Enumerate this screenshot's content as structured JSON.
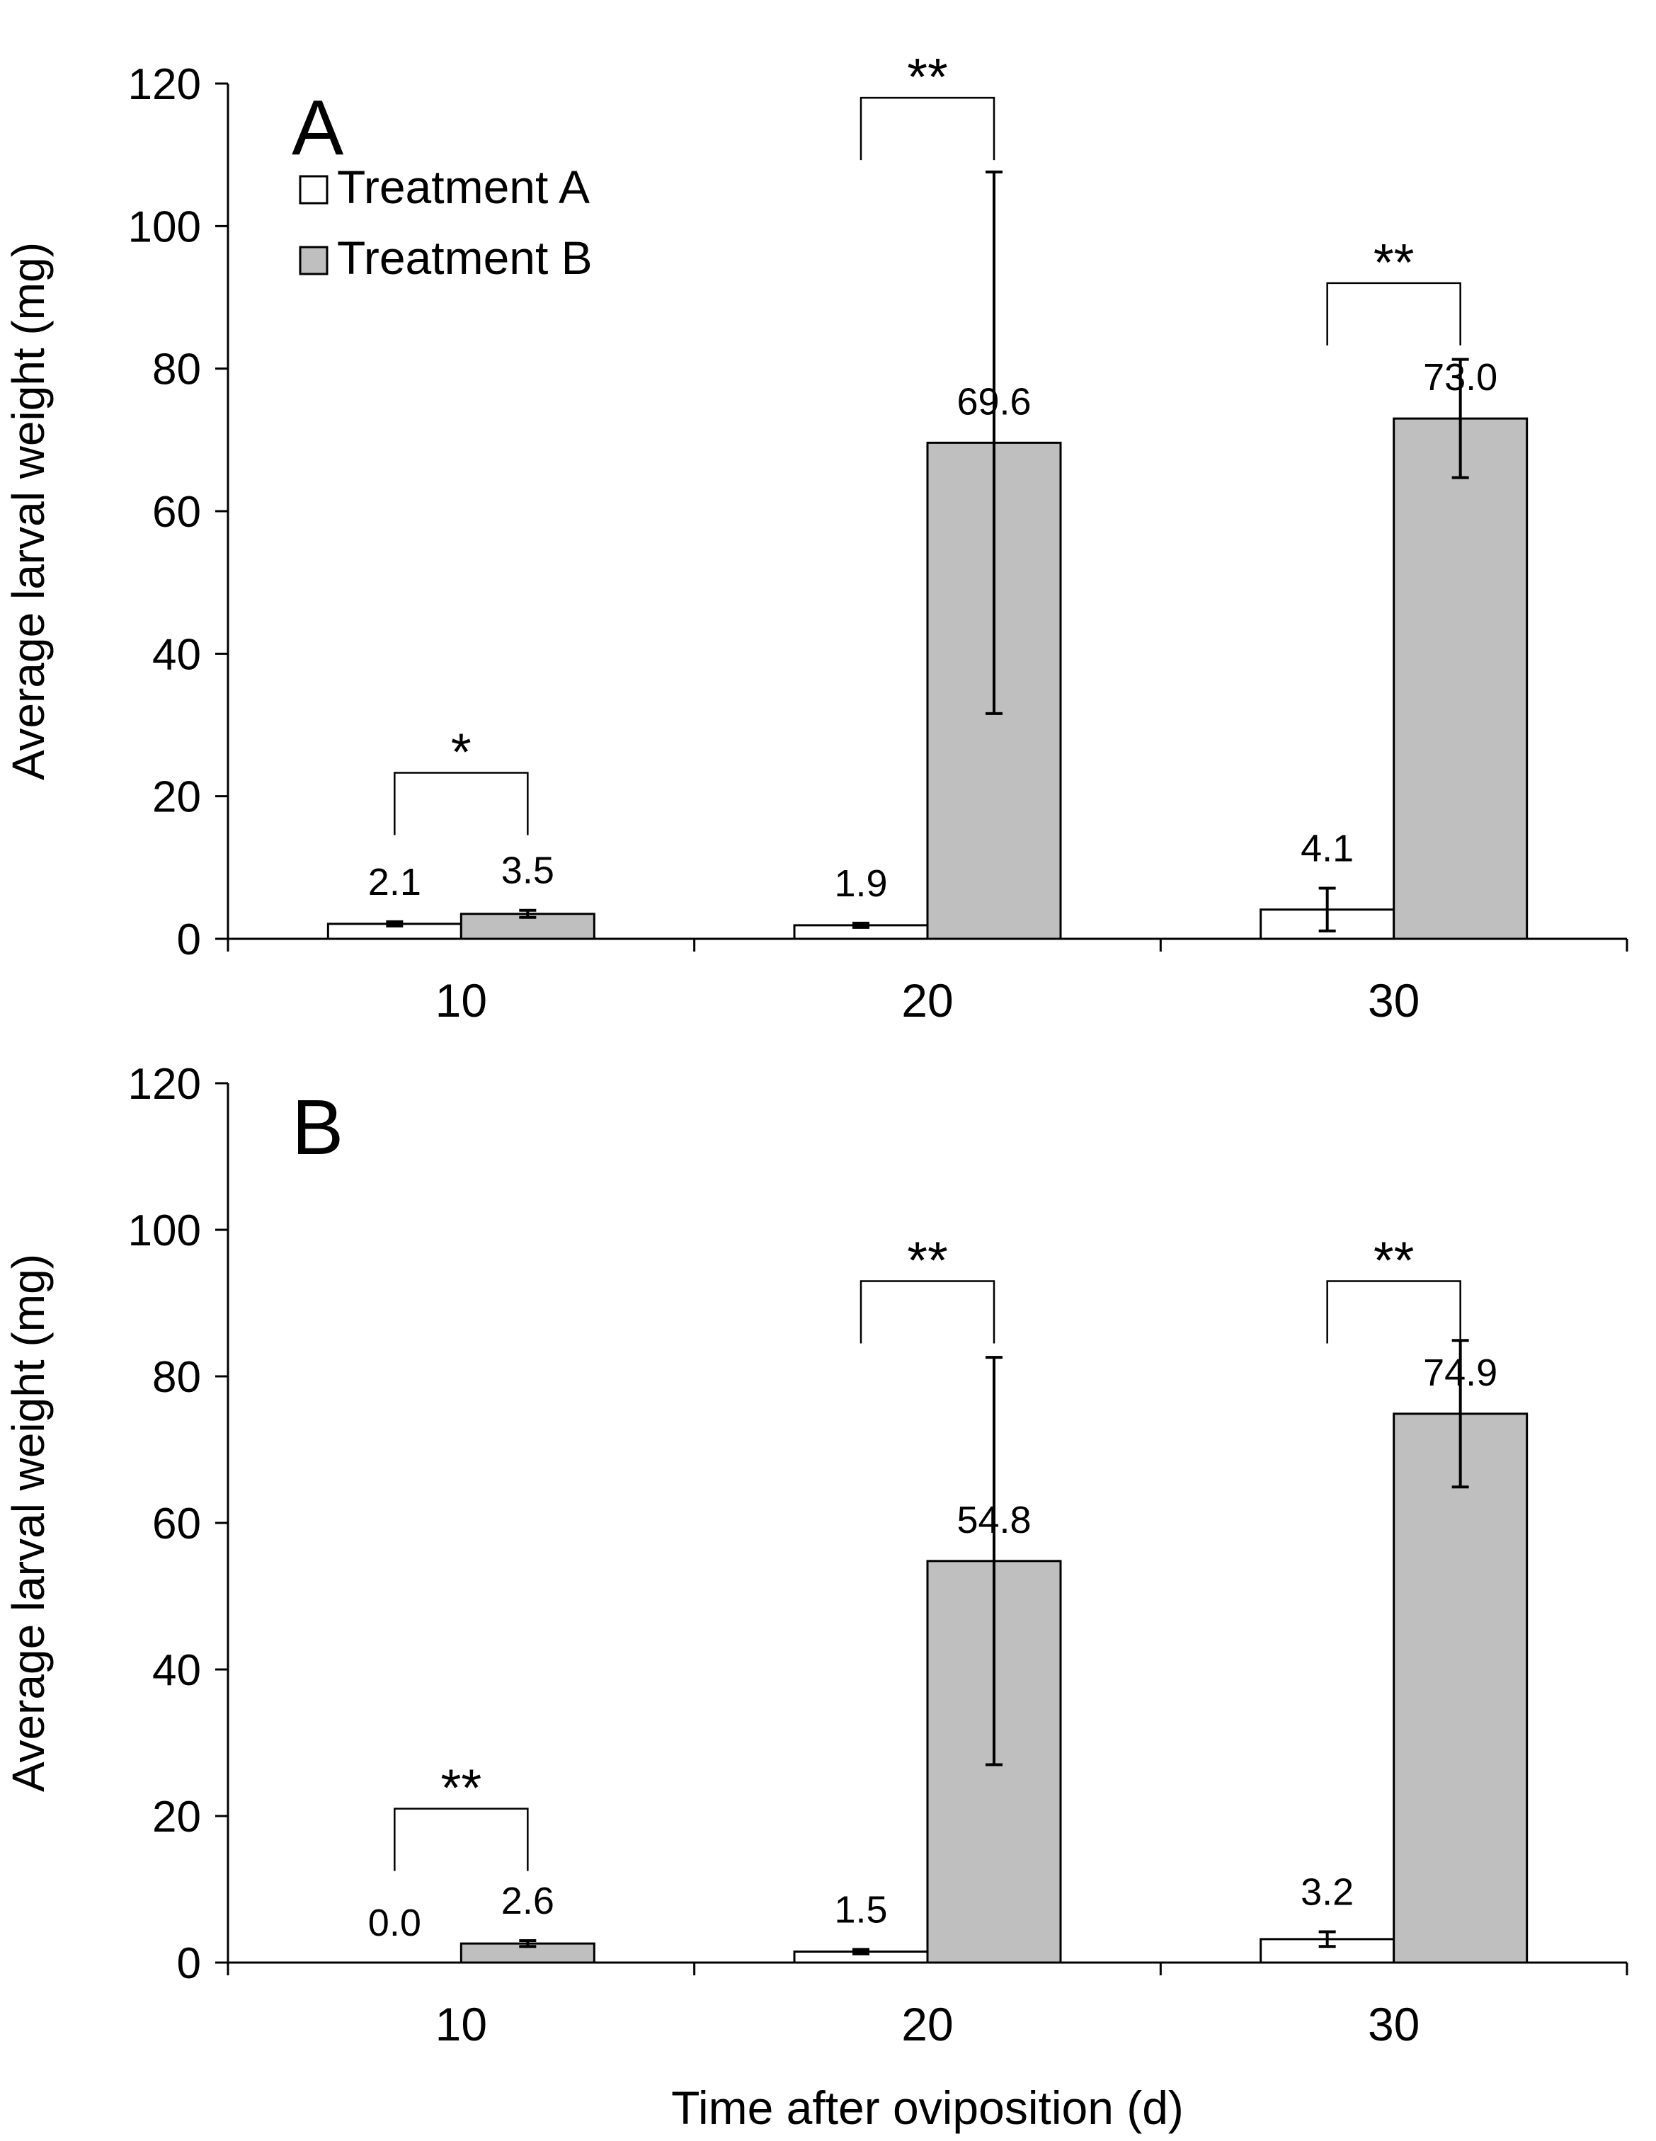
{
  "chart_data": [
    {
      "type": "bar",
      "panel_label": "A",
      "title": "",
      "xlabel": "",
      "ylabel": "Average larval weight (mg)",
      "ylim": [
        0,
        120
      ],
      "yticks": [
        "0",
        "20",
        "40",
        "60",
        "80",
        "100",
        "120"
      ],
      "categories": [
        "10",
        "20",
        "30"
      ],
      "series": [
        {
          "name": "Treatment A",
          "color": "#ffffff",
          "values": [
            2.1,
            1.9,
            4.1
          ],
          "errors": [
            0.3,
            0.3,
            3.0
          ],
          "labels": [
            "2.1",
            "1.9",
            "4.1"
          ]
        },
        {
          "name": "Treatment B",
          "color": "#bfbfbf",
          "values": [
            3.5,
            69.6,
            73.0
          ],
          "errors": [
            0.5,
            38.0,
            8.3
          ],
          "labels": [
            "3.5",
            "69.6",
            "73.0"
          ]
        }
      ],
      "significance": [
        {
          "category": "10",
          "mark": "*",
          "bracket_value": 23.3
        },
        {
          "category": "20",
          "mark": "**",
          "bracket_value": 118.0
        },
        {
          "category": "30",
          "mark": "**",
          "bracket_value": 92.0
        }
      ],
      "legend": {
        "position": "top-left",
        "entries": [
          "Treatment A",
          "Treatment B"
        ]
      }
    },
    {
      "type": "bar",
      "panel_label": "B",
      "title": "",
      "xlabel": "Time after oviposition (d)",
      "ylabel": "Average larval weight (mg)",
      "ylim": [
        0,
        120
      ],
      "yticks": [
        "0",
        "20",
        "40",
        "60",
        "80",
        "100",
        "120"
      ],
      "categories": [
        "10",
        "20",
        "30"
      ],
      "series": [
        {
          "name": "Treatment A",
          "color": "#ffffff",
          "values": [
            0.0,
            1.5,
            3.2
          ],
          "errors": [
            0,
            0.3,
            1.0
          ],
          "labels": [
            "0.0",
            "1.5",
            "3.2"
          ]
        },
        {
          "name": "Treatment B",
          "color": "#bfbfbf",
          "values": [
            2.6,
            54.8,
            74.9
          ],
          "errors": [
            0.4,
            27.8,
            10.0
          ],
          "labels": [
            "2.6",
            "54.8",
            "74.9"
          ]
        }
      ],
      "significance": [
        {
          "category": "10",
          "mark": "**",
          "bracket_value": 21.0
        },
        {
          "category": "20",
          "mark": "**",
          "bracket_value": 93.0
        },
        {
          "category": "30",
          "mark": "**",
          "bracket_value": 93.0
        }
      ],
      "legend": null
    }
  ]
}
